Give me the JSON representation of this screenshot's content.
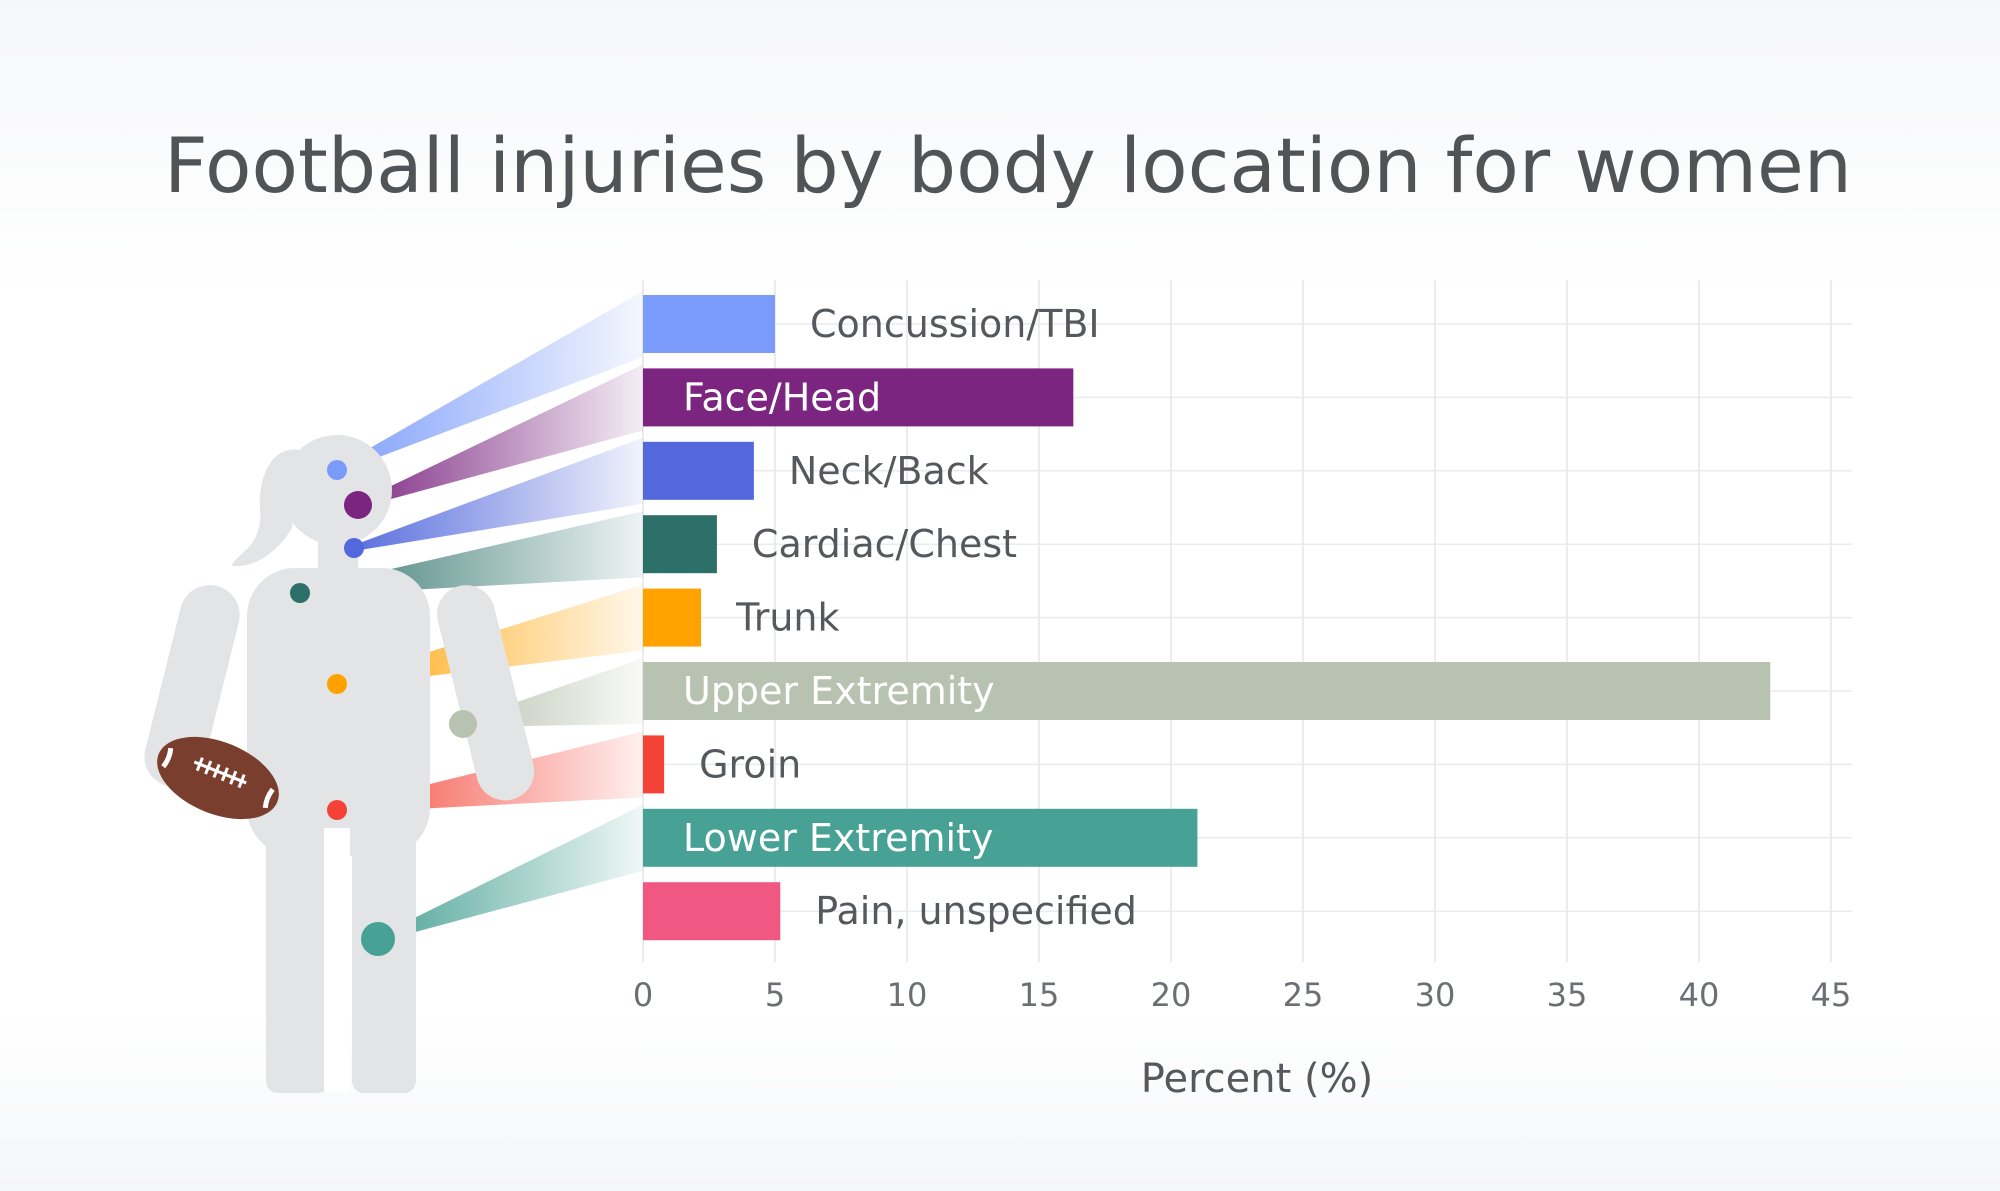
{
  "chart_data": {
    "type": "bar",
    "orientation": "horizontal",
    "title": "Football injuries by body location for women",
    "xlabel": "Percent (%)",
    "ylabel": "",
    "xlim": [
      0,
      45
    ],
    "xticks": [
      "0",
      "5",
      "10",
      "15",
      "20",
      "25",
      "30",
      "35",
      "40",
      "45"
    ],
    "grid": true,
    "categories": [
      "Concussion/TBI",
      "Face/Head",
      "Neck/Back",
      "Cardiac/Chest",
      "Trunk",
      "Upper Extremity",
      "Groin",
      "Lower Extremity",
      "Pain, unspecified"
    ],
    "values": [
      5.0,
      16.3,
      4.2,
      2.8,
      2.2,
      42.7,
      0.8,
      21.0,
      5.2
    ],
    "colors": [
      "#7b9bfa",
      "#7b2580",
      "#5268dc",
      "#2c7069",
      "#ffa200",
      "#b8c2b0",
      "#f44336",
      "#47a194",
      "#f05782"
    ],
    "label_inside": [
      false,
      true,
      false,
      false,
      false,
      true,
      false,
      true,
      false
    ]
  },
  "figure": {
    "silhouette_color": "#e2e4e6",
    "football_color": "#7a3e2e",
    "football-icon": "football-icon"
  }
}
